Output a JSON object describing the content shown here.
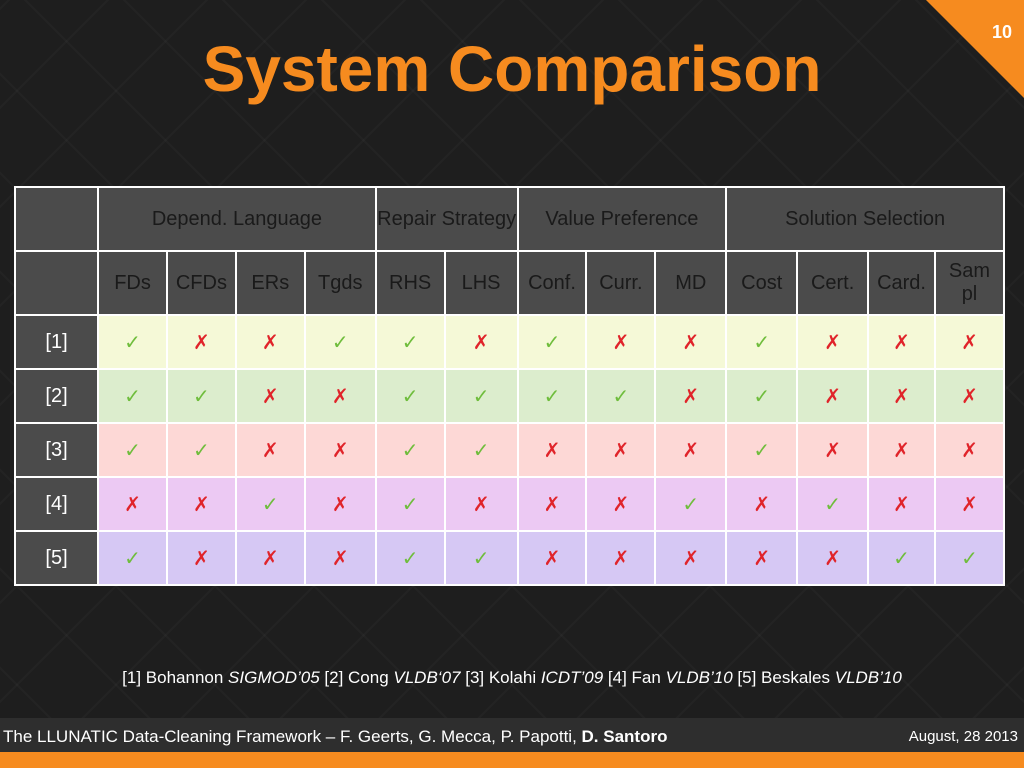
{
  "slide": {
    "number": "10",
    "title": "System Comparison"
  },
  "table": {
    "group_headers": [
      {
        "label": "Depend. Language",
        "span": 4
      },
      {
        "label": "Repair Strategy",
        "span": 2
      },
      {
        "label": "Value Preference",
        "span": 3
      },
      {
        "label": "Solution Selection",
        "span": 4
      }
    ],
    "columns": [
      "FDs",
      "CFDs",
      "ERs",
      "Tgds",
      "RHS",
      "LHS",
      "Conf.",
      "Curr.",
      "MD",
      "Cost",
      "Cert.",
      "Card.",
      "Sampl"
    ],
    "rows": [
      {
        "label": "[1]",
        "color": "#f5f9d7",
        "cells": [
          1,
          0,
          0,
          1,
          1,
          0,
          1,
          0,
          0,
          1,
          0,
          0,
          0
        ]
      },
      {
        "label": "[2]",
        "color": "#dcedcd",
        "cells": [
          1,
          1,
          0,
          0,
          1,
          1,
          1,
          1,
          0,
          1,
          0,
          0,
          0
        ]
      },
      {
        "label": "[3]",
        "color": "#fdd8d6",
        "cells": [
          1,
          1,
          0,
          0,
          1,
          1,
          0,
          0,
          0,
          1,
          0,
          0,
          0
        ]
      },
      {
        "label": "[4]",
        "color": "#ecc9f3",
        "cells": [
          0,
          0,
          1,
          0,
          1,
          0,
          0,
          0,
          1,
          0,
          1,
          0,
          0
        ]
      },
      {
        "label": "[5]",
        "color": "#d6c8f4",
        "cells": [
          1,
          0,
          0,
          0,
          1,
          1,
          0,
          0,
          0,
          0,
          0,
          1,
          1
        ]
      }
    ],
    "check_symbol": "✓",
    "cross_symbol": "✗",
    "colors": {
      "check": "#6fbd3c",
      "cross": "#e0242a",
      "header_bg": "#4b4b4b"
    }
  },
  "references": {
    "r1_plain": "[1] Bohannon ",
    "r1_venue": "SIGMOD’05",
    "r2_plain": " [2] Cong  ",
    "r2_venue": "VLDB‘07",
    "r3_plain": " [3] Kolahi ",
    "r3_venue": "ICDT’09",
    "r4_plain": " [4] Fan ",
    "r4_venue": "VLDB’10",
    "r5_plain": " [5] Beskales  ",
    "r5_venue": "VLDB’10"
  },
  "footer": {
    "left_text": "The LLUNATIC Data-Cleaning Framework – F. Geerts, G. Mecca, P. Papotti, ",
    "left_bold": "D. Santoro",
    "date": "August, 28 2013"
  },
  "theme": {
    "accent": "#f68b1f",
    "background": "#1e1e1e"
  }
}
